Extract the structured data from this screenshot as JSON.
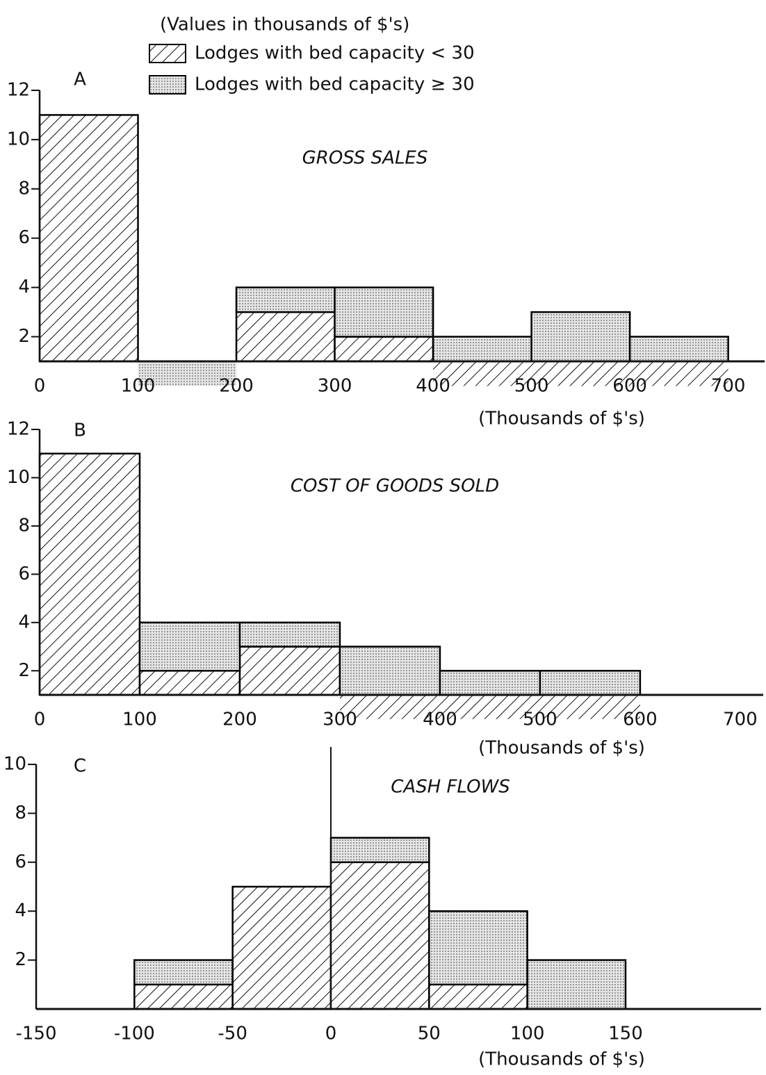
{
  "chart_data": [
    {
      "type": "histogram",
      "panel": "A",
      "title": "GROSS SALES",
      "legend_title": "(Values in thousands of $'s)",
      "xlabel": "(Thousands of $'s)",
      "bins": [
        0,
        100,
        200,
        300,
        400,
        500,
        600,
        700
      ],
      "series": [
        {
          "name": "Lodges with bed capacity < 30",
          "color": "#000000",
          "pattern": "hatch",
          "values": [
            11,
            0,
            3,
            2,
            0,
            0,
            0
          ]
        },
        {
          "name": "Lodges with bed capacity ≥ 30",
          "color": "#000000",
          "pattern": "dots",
          "values": [
            0,
            0,
            1,
            2,
            2,
            3,
            2
          ]
        }
      ],
      "stacked": true,
      "xlim": [
        0,
        737
      ],
      "xticks": [
        0,
        100,
        200,
        300,
        400,
        500,
        600,
        700
      ],
      "ylim": [
        1,
        12
      ],
      "yticks": [
        2,
        4,
        6,
        8,
        10,
        12
      ]
    },
    {
      "type": "histogram",
      "panel": "B",
      "title": "COST OF GOODS SOLD",
      "xlabel": "(Thousands of $'s)",
      "bins": [
        0,
        100,
        200,
        300,
        400,
        500,
        600
      ],
      "series": [
        {
          "name": "Lodges with bed capacity < 30",
          "color": "#000000",
          "pattern": "hatch",
          "values": [
            11,
            2,
            3,
            0,
            0,
            0
          ]
        },
        {
          "name": "Lodges with bed capacity ≥ 30",
          "color": "#000000",
          "pattern": "dots",
          "values": [
            0,
            2,
            1,
            3,
            2,
            2
          ]
        }
      ],
      "stacked": true,
      "xlim": [
        0,
        723
      ],
      "xticks": [
        0,
        100,
        200,
        300,
        400,
        500,
        600,
        700
      ],
      "ylim": [
        1,
        12
      ],
      "yticks": [
        2,
        4,
        6,
        8,
        10,
        12
      ]
    },
    {
      "type": "histogram",
      "panel": "C",
      "title": "CASH FLOWS",
      "xlabel": "(Thousands of $'s)",
      "bins": [
        -100,
        -50,
        0,
        50,
        100,
        150
      ],
      "series": [
        {
          "name": "Lodges with bed capacity < 30",
          "color": "#000000",
          "pattern": "hatch",
          "values": [
            1,
            5,
            6,
            1,
            0
          ]
        },
        {
          "name": "Lodges with bed capacity ≥ 30",
          "color": "#000000",
          "pattern": "dots",
          "values": [
            1,
            0,
            1,
            3,
            2
          ]
        }
      ],
      "stacked": true,
      "zero_line": true,
      "xlim": [
        -150,
        219
      ],
      "xticks": [
        -150,
        -100,
        -50,
        0,
        50,
        100,
        150
      ],
      "ylim": [
        0,
        10
      ],
      "yticks": [
        2,
        4,
        6,
        8,
        10
      ]
    }
  ]
}
